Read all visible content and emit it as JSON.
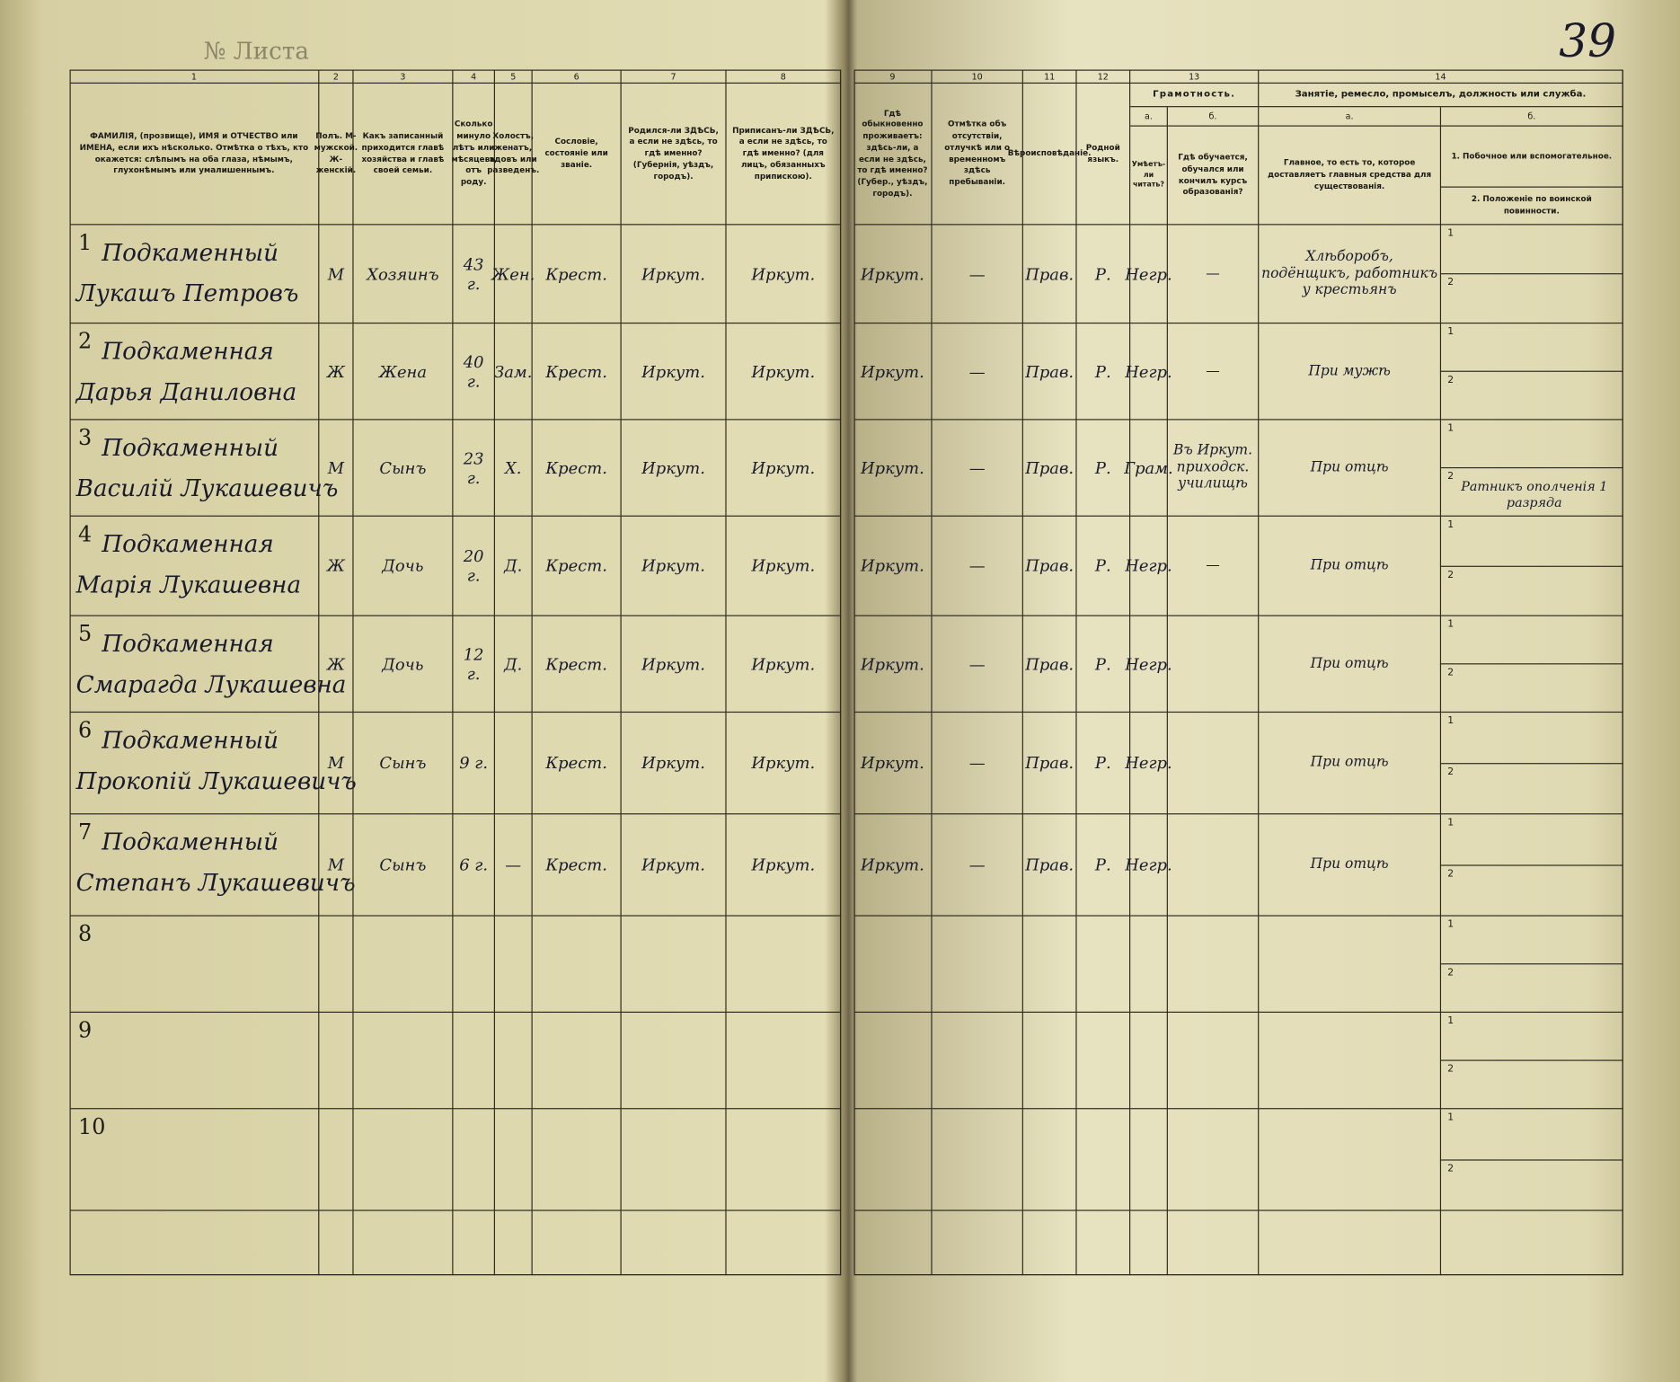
{
  "corner": {
    "sheet_label": "№ Листа",
    "page_number": "39"
  },
  "header": {
    "columns": [
      {
        "number": "1",
        "text": "ФАМИЛІЯ, (прозвище), ИМЯ и ОТЧЕСТВО или ИМЕНА, если ихъ нѣсколько. Отмѣтка о тѣхъ, кто окажется: слѣпымъ на оба глаза, нѣмымъ, глухонѣмымъ или умалишеннымъ."
      },
      {
        "number": "2",
        "text": "Полъ. М-мужской. Ж-женскій."
      },
      {
        "number": "3",
        "text": "Какъ записанный приходится главѣ хозяйства и главѣ своей семьи."
      },
      {
        "number": "4",
        "text": "Сколько минуло лѣтъ или мѣсяцевъ отъ роду."
      },
      {
        "number": "5",
        "text": "Холостъ, женатъ, вдовъ или разведенъ."
      },
      {
        "number": "6",
        "text": "Сословіе, состояніе или званіе."
      },
      {
        "number": "7",
        "text": "Родился-ли ЗДѢСЬ, а если не здѣсь, то гдѣ именно? (Губернія, уѣздъ, городъ)."
      },
      {
        "number": "8",
        "text": "Приписанъ-ли ЗДѢСЬ, а если не здѣсь, то гдѣ именно? (для лицъ, обязанныхъ припискою)."
      },
      {
        "number": "9",
        "text": "Гдѣ обыкновенно проживаетъ: здѣсь-ли, а если не здѣсь, то гдѣ именно? (Губер., уѣздъ, городъ)."
      },
      {
        "number": "10",
        "text": "Отмѣтка объ отсутствіи, отлучкѣ или о временномъ здѣсь пребываніи."
      },
      {
        "number": "11",
        "text": "Вѣроисповѣданіе."
      },
      {
        "number": "12",
        "text": "Родной языкъ."
      }
    ],
    "literacy": {
      "number": "13",
      "title": "Грамотность.",
      "a": {
        "letter": "а.",
        "text": "Умѣетъ-ли читать?"
      },
      "b": {
        "letter": "б.",
        "text": "Гдѣ обучается, обучался или кончилъ курсъ образованія?"
      }
    },
    "occupation": {
      "number": "14",
      "title": "Занятіе, ремесло, промыселъ, должность или служба.",
      "a": {
        "letter": "а.",
        "text": "Главное, то есть то, которое доставляетъ главныя средства для существованія."
      },
      "b": {
        "letter": "б.",
        "line1": "1. Побочное или вспомогательное.",
        "line2": "2. Положеніе по воинской повинности."
      }
    }
  },
  "rows": [
    {
      "number": "1",
      "surname": "Подкаменный",
      "given": "Лукашъ Петровъ",
      "sex": "М",
      "relation": "Хозяинъ",
      "age": "43 г.",
      "marital": "Жен.",
      "estate": "Крест.",
      "born": "Иркут.",
      "registered": "Иркут.",
      "residence": "Иркут.",
      "absence": "—",
      "religion": "Прав.",
      "language": "Р.",
      "literate": "Негр.",
      "education": "—",
      "occupation": "Хлѣборобъ, подёнщикъ, работникъ у крестьянъ",
      "military_lines": [
        "1",
        "2"
      ]
    },
    {
      "number": "2",
      "surname": "Подкаменная",
      "given": "Дарья Даниловна",
      "sex": "Ж",
      "relation": "Жена",
      "age": "40 г.",
      "marital": "Зам.",
      "estate": "Крест.",
      "born": "Иркут.",
      "registered": "Иркут.",
      "residence": "Иркут.",
      "absence": "—",
      "religion": "Прав.",
      "language": "Р.",
      "literate": "Негр.",
      "education": "—",
      "occupation": "При мужѣ",
      "military_lines": [
        "1",
        "2"
      ]
    },
    {
      "number": "3",
      "surname": "Подкаменный",
      "given": "Василій Лукашевичъ",
      "sex": "М",
      "relation": "Сынъ",
      "age": "23 г.",
      "marital": "Х.",
      "estate": "Крест.",
      "born": "Иркут.",
      "registered": "Иркут.",
      "residence": "Иркут.",
      "absence": "—",
      "religion": "Прав.",
      "language": "Р.",
      "literate": "Грам.",
      "education": "Въ Иркут. приходск. училищѣ",
      "occupation": "При отцѣ",
      "military_lines": [
        "1",
        "2"
      ],
      "military": "Ратникъ ополченія 1 разряда"
    },
    {
      "number": "4",
      "surname": "Подкаменная",
      "given": "Марія Лукашевна",
      "sex": "Ж",
      "relation": "Дочь",
      "age": "20 г.",
      "marital": "Д.",
      "estate": "Крест.",
      "born": "Иркут.",
      "registered": "Иркут.",
      "residence": "Иркут.",
      "absence": "—",
      "religion": "Прав.",
      "language": "Р.",
      "literate": "Негр.",
      "education": "—",
      "occupation": "При отцѣ",
      "military_lines": [
        "1",
        "2"
      ]
    },
    {
      "number": "5",
      "surname": "Подкаменная",
      "given": "Смарагда Лукашевна",
      "sex": "Ж",
      "relation": "Дочь",
      "age": "12 г.",
      "marital": "Д.",
      "estate": "Крест.",
      "born": "Иркут.",
      "registered": "Иркут.",
      "residence": "Иркут.",
      "absence": "—",
      "religion": "Прав.",
      "language": "Р.",
      "literate": "Негр.",
      "occupation": "При отцѣ",
      "military_lines": [
        "1",
        "2"
      ]
    },
    {
      "number": "6",
      "surname": "Подкаменный",
      "given": "Прокопій Лукашевичъ",
      "sex": "М",
      "relation": "Сынъ",
      "age": "9 г.",
      "estate": "Крест.",
      "born": "Иркут.",
      "registered": "Иркут.",
      "residence": "Иркут.",
      "absence": "—",
      "religion": "Прав.",
      "language": "Р.",
      "literate": "Негр.",
      "occupation": "При отцѣ",
      "military_lines": [
        "1",
        "2"
      ]
    },
    {
      "number": "7",
      "surname": "Подкаменный",
      "given": "Степанъ Лукашевичъ",
      "sex": "М",
      "relation": "Сынъ",
      "age": "6 г.",
      "marital": "—",
      "estate": "Крест.",
      "born": "Иркут.",
      "registered": "Иркут.",
      "residence": "Иркут.",
      "absence": "—",
      "religion": "Прав.",
      "language": "Р.",
      "literate": "Негр.",
      "occupation": "При отцѣ",
      "military_lines": [
        "1",
        "2"
      ]
    },
    {
      "number": "8",
      "military_lines": [
        "1",
        "2"
      ]
    },
    {
      "number": "9",
      "military_lines": [
        "1",
        "2"
      ]
    },
    {
      "number": "10",
      "military_lines": [
        "1",
        "2"
      ]
    }
  ]
}
